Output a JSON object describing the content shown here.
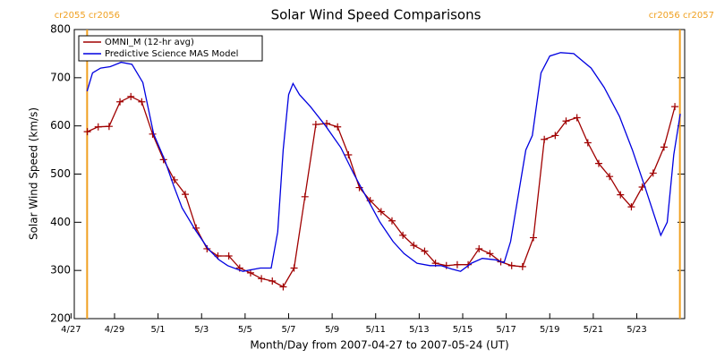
{
  "chart_data": {
    "type": "line",
    "title": "Solar Wind Speed Comparisons",
    "xlabel": "Month/Day from 2007-04-27 to 2007-05-24 (UT)",
    "ylabel": "Solar Wind Speed (km/s)",
    "xlim": [
      0.15,
      28.2
    ],
    "ylim": [
      200,
      800
    ],
    "yticks": [
      200,
      300,
      400,
      500,
      600,
      700,
      800
    ],
    "xticks": [
      {
        "value": 0,
        "label": "4/27"
      },
      {
        "value": 2,
        "label": "4/29"
      },
      {
        "value": 4,
        "label": "5/1"
      },
      {
        "value": 6,
        "label": "5/3"
      },
      {
        "value": 8,
        "label": "5/5"
      },
      {
        "value": 10,
        "label": "5/7"
      },
      {
        "value": 12,
        "label": "5/9"
      },
      {
        "value": 14,
        "label": "5/11"
      },
      {
        "value": 16,
        "label": "5/13"
      },
      {
        "value": 18,
        "label": "5/15"
      },
      {
        "value": 20,
        "label": "5/17"
      },
      {
        "value": 22,
        "label": "5/19"
      },
      {
        "value": 24,
        "label": "5/21"
      },
      {
        "value": 26,
        "label": "5/23"
      }
    ],
    "legend": "upper left",
    "annotations": [
      {
        "x": 0.74,
        "label": "cr2055 cr2056",
        "color": "#f0a020"
      },
      {
        "x": 27.98,
        "label": "cr2056 cr2057",
        "color": "#f0a020"
      }
    ],
    "series": [
      {
        "name": "OMNI_M (12-hr avg)",
        "color": "#a00000",
        "markers": true,
        "x": [
          0.75,
          1.25,
          1.75,
          2.25,
          2.75,
          3.25,
          3.75,
          4.25,
          4.75,
          5.25,
          5.75,
          6.25,
          6.75,
          7.25,
          7.75,
          8.25,
          8.75,
          9.25,
          9.75,
          10.25,
          10.75,
          11.25,
          11.75,
          12.25,
          12.75,
          13.25,
          13.75,
          14.25,
          14.75,
          15.25,
          15.75,
          16.25,
          16.75,
          17.25,
          17.75,
          18.25,
          18.75,
          19.25,
          19.75,
          20.25,
          20.75,
          21.25,
          21.75,
          22.25,
          22.75,
          23.25,
          23.75,
          24.25,
          24.75,
          25.25,
          25.75,
          26.25,
          26.75,
          27.25,
          27.75
        ],
        "values": [
          588,
          598,
          599,
          650,
          661,
          650,
          583,
          530,
          488,
          458,
          388,
          345,
          330,
          330,
          305,
          295,
          283,
          278,
          266,
          305,
          453,
          603,
          605,
          598,
          540,
          472,
          445,
          422,
          403,
          373,
          352,
          340,
          315,
          310,
          312,
          312,
          345,
          335,
          318,
          310,
          308,
          368,
          572,
          580,
          610,
          617,
          565,
          522,
          495,
          457,
          432,
          473,
          502,
          556,
          640
        ]
      },
      {
        "name": "Predictive Science MAS Model",
        "color": "#0000e0",
        "markers": false,
        "x": [
          0.74,
          0.99,
          1.36,
          1.8,
          2.3,
          2.8,
          3.3,
          3.8,
          4.3,
          4.7,
          5.1,
          5.7,
          6.3,
          6.8,
          7.2,
          7.9,
          8.7,
          9.2,
          9.5,
          9.75,
          10.0,
          10.2,
          10.5,
          11.0,
          11.7,
          12.4,
          13.0,
          13.6,
          14.2,
          14.8,
          15.3,
          15.9,
          16.5,
          17.0,
          17.5,
          17.9,
          18.4,
          18.9,
          19.5,
          19.9,
          20.2,
          20.9,
          21.2,
          21.6,
          22.0,
          22.5,
          23.1,
          23.9,
          24.5,
          25.2,
          25.8,
          26.4,
          27.1,
          27.4,
          27.7,
          28.0
        ],
        "values": [
          672,
          710,
          720,
          723,
          732,
          728,
          690,
          583,
          530,
          478,
          430,
          385,
          345,
          322,
          310,
          298,
          305,
          305,
          380,
          550,
          665,
          688,
          665,
          640,
          600,
          555,
          500,
          450,
          400,
          360,
          335,
          315,
          310,
          310,
          303,
          298,
          315,
          325,
          322,
          316,
          360,
          550,
          580,
          710,
          745,
          752,
          750,
          720,
          680,
          620,
          550,
          470,
          373,
          400,
          540,
          625
        ]
      }
    ]
  }
}
